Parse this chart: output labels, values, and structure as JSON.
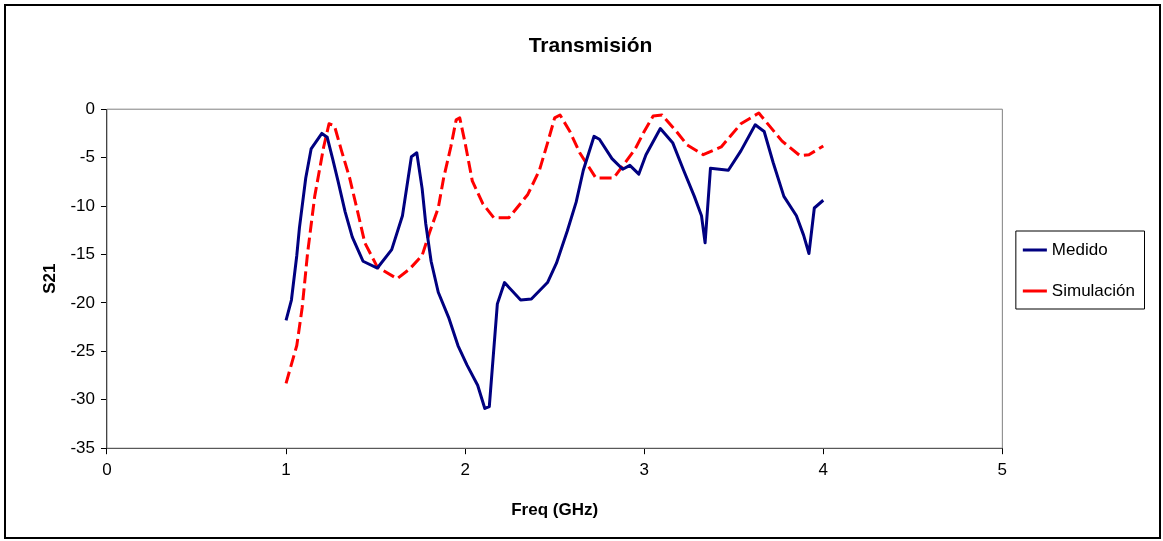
{
  "chart_data": {
    "type": "line",
    "title": "Transmisión",
    "xlabel": "Freq (GHz)",
    "ylabel": "S21",
    "xlim": [
      0,
      5
    ],
    "xticks": [
      0,
      1,
      2,
      3,
      4,
      5
    ],
    "ylim": [
      -35,
      0
    ],
    "yticks": [
      -35,
      -30,
      -25,
      -20,
      -15,
      -10,
      -5,
      0
    ],
    "grid": false,
    "legend": "right",
    "marker": "none",
    "series": [
      {
        "name": "Medido",
        "color": "#000080",
        "line_style": "solid",
        "x": [
          1.0,
          1.03,
          1.06,
          1.075,
          1.11,
          1.14,
          1.2,
          1.23,
          1.26,
          1.29,
          1.33,
          1.37,
          1.43,
          1.51,
          1.59,
          1.65,
          1.7,
          1.73,
          1.76,
          1.78,
          1.81,
          1.85,
          1.91,
          1.96,
          2.01,
          2.07,
          2.11,
          2.135,
          2.18,
          2.22,
          2.31,
          2.37,
          2.46,
          2.51,
          2.57,
          2.62,
          2.66,
          2.72,
          2.75,
          2.82,
          2.88,
          2.92,
          2.97,
          3.01,
          3.09,
          3.16,
          3.22,
          3.28,
          3.32,
          3.34,
          3.37,
          3.47,
          3.54,
          3.62,
          3.67,
          3.72,
          3.78,
          3.85,
          3.89,
          3.92,
          3.95,
          4.0
        ],
        "values": [
          -21.8,
          -19.7,
          -15.1,
          -12.2,
          -7.1,
          -4.1,
          -2.5,
          -2.9,
          -5.1,
          -7.4,
          -10.6,
          -13.2,
          -15.7,
          -16.4,
          -14.5,
          -11.0,
          -4.9,
          -4.5,
          -8.2,
          -11.8,
          -15.7,
          -18.9,
          -21.6,
          -24.4,
          -26.4,
          -28.5,
          -30.9,
          -30.7,
          -20.1,
          -17.9,
          -19.7,
          -19.6,
          -17.9,
          -15.9,
          -12.6,
          -9.6,
          -6.3,
          -2.8,
          -3.1,
          -5.1,
          -6.2,
          -5.8,
          -6.7,
          -4.7,
          -2.0,
          -3.5,
          -6.3,
          -9.0,
          -11.0,
          -13.8,
          -6.1,
          -6.3,
          -4.3,
          -1.6,
          -2.3,
          -5.5,
          -9.0,
          -11.0,
          -13.0,
          -14.9,
          -10.2,
          -9.4
        ]
      },
      {
        "name": "Simulación",
        "color": "#ff0000",
        "line_style": "dashed",
        "x": [
          1.0,
          1.06,
          1.09,
          1.12,
          1.16,
          1.21,
          1.24,
          1.27,
          1.31,
          1.355,
          1.4,
          1.44,
          1.51,
          1.62,
          1.69,
          1.76,
          1.8,
          1.85,
          1.88,
          1.92,
          1.95,
          1.97,
          2.0,
          2.04,
          2.1,
          2.16,
          2.245,
          2.35,
          2.415,
          2.46,
          2.5,
          2.53,
          2.585,
          2.64,
          2.73,
          2.83,
          2.95,
          3.0,
          3.05,
          3.1,
          3.18,
          3.24,
          3.33,
          3.43,
          3.54,
          3.64,
          3.77,
          3.87,
          3.92,
          4.0
        ],
        "values": [
          -28.3,
          -24.4,
          -20.5,
          -14.9,
          -9.0,
          -3.9,
          -1.5,
          -1.7,
          -4.3,
          -7.1,
          -10.6,
          -13.8,
          -16.3,
          -17.5,
          -16.5,
          -15.1,
          -12.8,
          -10.2,
          -7.1,
          -3.9,
          -1.1,
          -0.9,
          -3.5,
          -7.4,
          -9.8,
          -11.2,
          -11.2,
          -8.8,
          -6.3,
          -3.5,
          -0.9,
          -0.6,
          -2.3,
          -4.5,
          -7.1,
          -7.1,
          -4.1,
          -2.3,
          -0.7,
          -0.6,
          -2.3,
          -3.7,
          -4.7,
          -3.9,
          -1.5,
          -0.4,
          -3.3,
          -4.8,
          -4.7,
          -3.8
        ]
      }
    ]
  }
}
